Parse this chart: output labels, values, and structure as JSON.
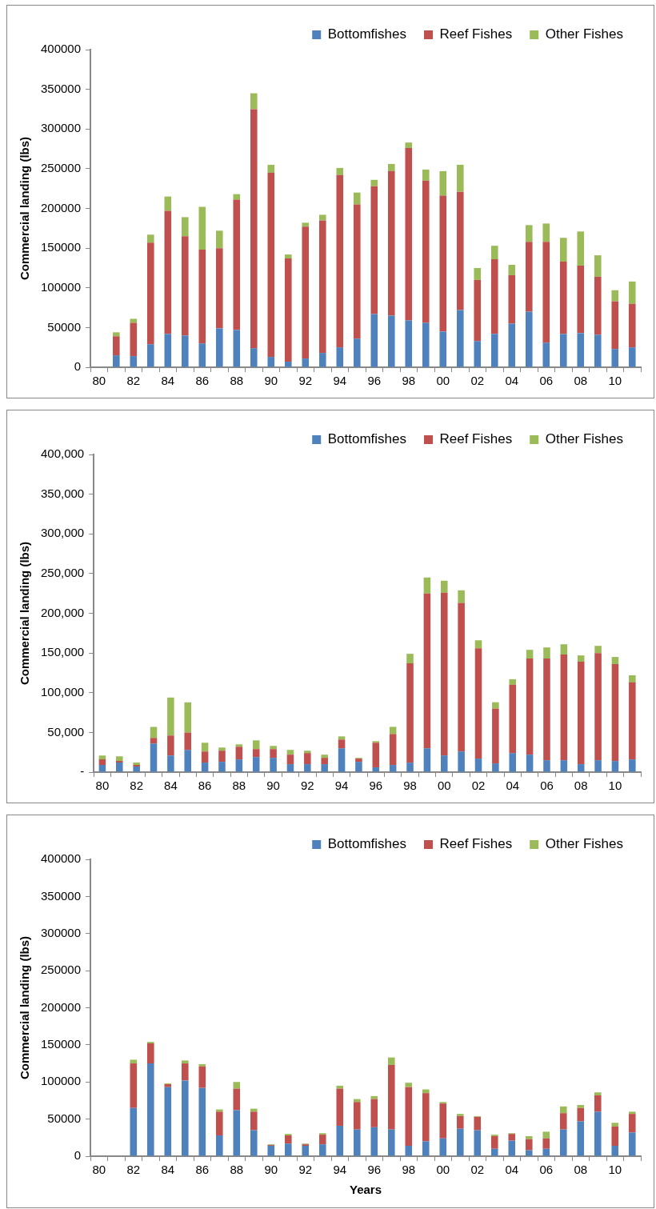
{
  "chart_data": [
    {
      "type": "bar",
      "stacked": true,
      "legend": "top right",
      "grid": false,
      "ylabel": "Commercial landing (lbs)",
      "categories": [
        "80",
        null,
        "82",
        null,
        "84",
        null,
        "86",
        null,
        "88",
        null,
        "90",
        null,
        "92",
        null,
        "94",
        null,
        "96",
        null,
        "98",
        null,
        "00",
        null,
        "02",
        null,
        "04",
        null,
        "06",
        null,
        "08",
        null,
        "10",
        null
      ],
      "ylim": [
        0,
        400000
      ],
      "yticks": [
        0,
        50000,
        100000,
        150000,
        200000,
        250000,
        300000,
        350000,
        400000
      ],
      "series": [
        {
          "name": "Bottomfishes",
          "color": "#4f81bd",
          "values": [
            null,
            15000,
            14000,
            29000,
            42000,
            40000,
            30000,
            49000,
            47000,
            24000,
            13000,
            7000,
            11000,
            18000,
            25000,
            36000,
            67000,
            65000,
            59000,
            56000,
            45000,
            72000,
            33000,
            42000,
            55000,
            70000,
            31000,
            42000,
            43000,
            41000,
            23000,
            25000
          ]
        },
        {
          "name": "Reef Fishes",
          "color": "#c0504d",
          "values": [
            null,
            24000,
            42000,
            128000,
            155000,
            125000,
            118000,
            101000,
            164000,
            301000,
            232000,
            130000,
            166000,
            167000,
            217000,
            169000,
            161000,
            182000,
            217000,
            179000,
            171000,
            149000,
            77000,
            94000,
            61000,
            88000,
            127000,
            91000,
            85000,
            73000,
            60000,
            55000
          ]
        },
        {
          "name": "Other Fishes",
          "color": "#9bbb59",
          "values": [
            null,
            5000,
            5000,
            10000,
            18000,
            24000,
            54000,
            22000,
            7000,
            20000,
            10000,
            5000,
            5000,
            7000,
            9000,
            15000,
            8000,
            9000,
            7000,
            14000,
            31000,
            34000,
            15000,
            17000,
            13000,
            21000,
            23000,
            30000,
            43000,
            27000,
            14000,
            28000
          ]
        }
      ]
    },
    {
      "type": "bar",
      "stacked": true,
      "legend": "top right",
      "grid": false,
      "ylabel": "Commercial landing (lbs)",
      "categories": [
        "80",
        null,
        "82",
        null,
        "84",
        null,
        "86",
        null,
        "88",
        null,
        "90",
        null,
        "92",
        null,
        "94",
        null,
        "96",
        null,
        "98",
        null,
        "00",
        null,
        "02",
        null,
        "04",
        null,
        "06",
        null,
        "08",
        null,
        "10",
        null
      ],
      "ylim": [
        0,
        400000
      ],
      "yticks": [
        {
          "value": 0,
          "label": "-"
        },
        {
          "value": 50000,
          "label": "50,000"
        },
        {
          "value": 100000,
          "label": "100,000"
        },
        {
          "value": 150000,
          "label": "150,000"
        },
        {
          "value": 200000,
          "label": "200,000"
        },
        {
          "value": 250000,
          "label": "250,000"
        },
        {
          "value": 300000,
          "label": "300,000"
        },
        {
          "value": 350000,
          "label": "350,000"
        },
        {
          "value": 400000,
          "label": "400,000"
        }
      ],
      "series": [
        {
          "name": "Bottomfishes",
          "color": "#4f81bd",
          "values": [
            9000,
            12000,
            7000,
            36000,
            21000,
            28000,
            12000,
            13000,
            16000,
            19000,
            18000,
            10000,
            10000,
            10000,
            30000,
            13000,
            6000,
            9000,
            12000,
            30000,
            21000,
            26000,
            17000,
            11000,
            24000,
            22000,
            15000,
            15000,
            10000,
            15000,
            14000,
            16000
          ]
        },
        {
          "name": "Reef Fishes",
          "color": "#c0504d",
          "values": [
            7000,
            2000,
            2000,
            7000,
            25000,
            22000,
            14000,
            14000,
            16000,
            10000,
            11000,
            12000,
            14000,
            8000,
            11000,
            4000,
            31000,
            39000,
            125000,
            195000,
            205000,
            187000,
            139000,
            69000,
            86000,
            121000,
            128000,
            133000,
            129000,
            135000,
            122000,
            97000
          ]
        },
        {
          "name": "Other Fishes",
          "color": "#9bbb59",
          "values": [
            5000,
            6000,
            3000,
            14000,
            48000,
            38000,
            11000,
            4000,
            3000,
            11000,
            4000,
            6000,
            3000,
            4000,
            4000,
            1000,
            2000,
            9000,
            12000,
            20000,
            15000,
            16000,
            10000,
            8000,
            7000,
            11000,
            14000,
            13000,
            8000,
            9000,
            9000,
            9000
          ]
        }
      ]
    },
    {
      "type": "bar",
      "stacked": true,
      "legend": "top right",
      "grid": false,
      "ylabel": "Commercial landing (lbs)",
      "xlabel": "Years",
      "categories": [
        "80",
        null,
        "82",
        null,
        "84",
        null,
        "86",
        null,
        "88",
        null,
        "90",
        null,
        "92",
        null,
        "94",
        null,
        "96",
        null,
        "98",
        null,
        "00",
        null,
        "02",
        null,
        "04",
        null,
        "06",
        null,
        "08",
        null,
        "10",
        null
      ],
      "ylim": [
        0,
        400000
      ],
      "yticks": [
        0,
        50000,
        100000,
        150000,
        200000,
        250000,
        300000,
        350000,
        400000
      ],
      "series": [
        {
          "name": "Bottomfishes",
          "color": "#4f81bd",
          "values": [
            null,
            null,
            65000,
            125000,
            93000,
            102000,
            92000,
            28000,
            62000,
            35000,
            14000,
            17000,
            14000,
            16000,
            41000,
            36000,
            39000,
            36000,
            14000,
            20000,
            24000,
            37000,
            35000,
            10000,
            21000,
            8000,
            10000,
            36000,
            47000,
            60000,
            14000,
            32000
          ]
        },
        {
          "name": "Reef Fishes",
          "color": "#c0504d",
          "values": [
            null,
            null,
            60000,
            27000,
            4000,
            23000,
            29000,
            32000,
            29000,
            25000,
            1000,
            11000,
            2000,
            13000,
            50000,
            37000,
            38000,
            87000,
            79000,
            65000,
            47000,
            17000,
            18000,
            17000,
            9000,
            15000,
            14000,
            22000,
            18000,
            22000,
            26000,
            25000
          ]
        },
        {
          "name": "Other Fishes",
          "color": "#9bbb59",
          "values": [
            null,
            null,
            5000,
            2000,
            1000,
            4000,
            3000,
            3000,
            9000,
            4000,
            1000,
            2000,
            1000,
            2000,
            4000,
            4000,
            4000,
            10000,
            6000,
            5000,
            2000,
            3000,
            1000,
            2000,
            1000,
            4000,
            9000,
            9000,
            4000,
            4000,
            5000,
            3000
          ]
        }
      ]
    }
  ]
}
